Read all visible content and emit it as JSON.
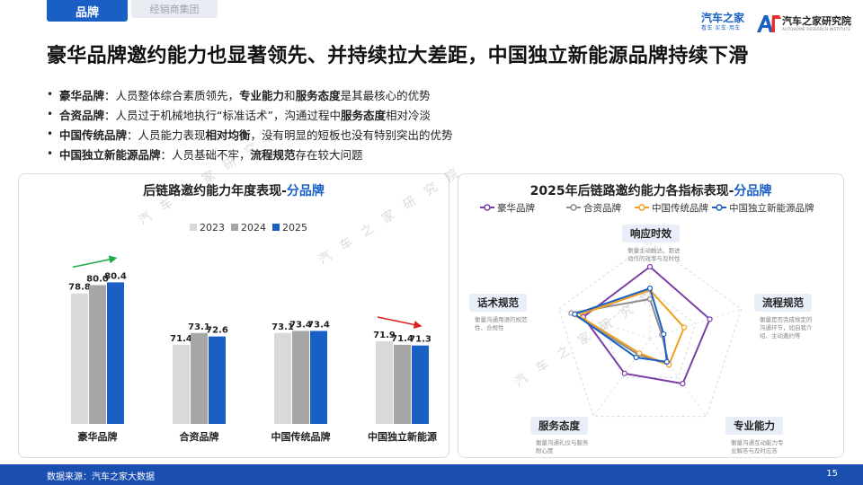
{
  "tabs": {
    "main": "品牌",
    "sub": "经销商集团"
  },
  "logos": {
    "brand1": {
      "name": "汽车之家",
      "tagline": "看车·买车·用车"
    },
    "brand2": {
      "name": "汽车之家研究院",
      "tagline": "AUTOHOME RESEARCH INSTITUTE"
    }
  },
  "title": "豪华品牌邀约能力也显著领先、并持续拉大差距，中国独立新能源品牌持续下滑",
  "bullets": [
    {
      "label": "豪华品牌",
      "parts": [
        "：人员整体综合素质领先，",
        "专业能力",
        "和",
        "服务态度",
        "是其最核心的优势"
      ]
    },
    {
      "label": "合资品牌",
      "parts": [
        "：人员过于机械地执行“标准话术”，沟通过程中",
        "服务态度",
        "相对冷淡"
      ]
    },
    {
      "label": "中国传统品牌",
      "parts": [
        "：人员能力表现",
        "相对均衡",
        "，没有明显的短板也没有特别突出的优势"
      ]
    },
    {
      "label": "中国独立新能源品牌",
      "parts": [
        "：人员基础不牢，",
        "流程规范",
        "存在较大问题"
      ]
    }
  ],
  "watermark": "汽车之家研究院",
  "footer": {
    "source": "数据来源：汽车之家大数据",
    "page": "15"
  },
  "chart_data": [
    {
      "type": "bar",
      "title": "后链路邀约能力年度表现-",
      "title_highlight": "分品牌",
      "categories": [
        "豪华品牌",
        "合资品牌",
        "中国传统品牌",
        "中国独立新能源"
      ],
      "series": [
        {
          "name": "2023",
          "values": [
            78.8,
            71.4,
            73.1,
            71.9
          ],
          "color": "#d9d9d9"
        },
        {
          "name": "2024",
          "values": [
            80.0,
            73.1,
            73.4,
            71.4
          ],
          "color": "#a6a6a6"
        },
        {
          "name": "2025",
          "values": [
            80.4,
            72.6,
            73.4,
            71.3
          ],
          "color": "#1a5fc4"
        }
      ],
      "ylim": [
        60,
        82
      ],
      "legend_position": "top",
      "trend_arrows": [
        {
          "category": "豪华品牌",
          "direction": "up",
          "color": "#1faa4a"
        },
        {
          "category": "中国独立新能源",
          "direction": "down",
          "color": "#e02020"
        }
      ]
    },
    {
      "type": "radar",
      "title": "2025年后链路邀约能力各指标表现-",
      "title_highlight": "分品牌",
      "axes": [
        {
          "name": "响应时效",
          "desc": "衡量主动触达、跟进动作的效率与及时性"
        },
        {
          "name": "流程规范",
          "desc": "衡量是否完成规定的沟通环节，如自我介绍、主动邀约等"
        },
        {
          "name": "专业能力",
          "desc": "衡量沟通互动能力专业解答与及时应答"
        },
        {
          "name": "服务态度",
          "desc": "衡量沟通礼仪与服务耐心度"
        },
        {
          "name": "话术规范",
          "desc": "衡量沟通用语的规范性、合规性"
        }
      ],
      "series": [
        {
          "name": "豪华品牌",
          "values": [
            0.8,
            0.7,
            0.62,
            0.48,
            0.78
          ],
          "color": "#7b3fa8"
        },
        {
          "name": "合资品牌",
          "values": [
            0.44,
            0.14,
            0.36,
            0.22,
            0.92
          ],
          "color": "#8c8c8c"
        },
        {
          "name": "中国传统品牌",
          "values": [
            0.54,
            0.4,
            0.36,
            0.2,
            0.84
          ],
          "color": "#f0a020"
        },
        {
          "name": "中国独立新能源品牌",
          "values": [
            0.56,
            0.16,
            0.32,
            0.26,
            0.88
          ],
          "color": "#1a5fc4"
        }
      ],
      "legend_position": "top"
    }
  ]
}
